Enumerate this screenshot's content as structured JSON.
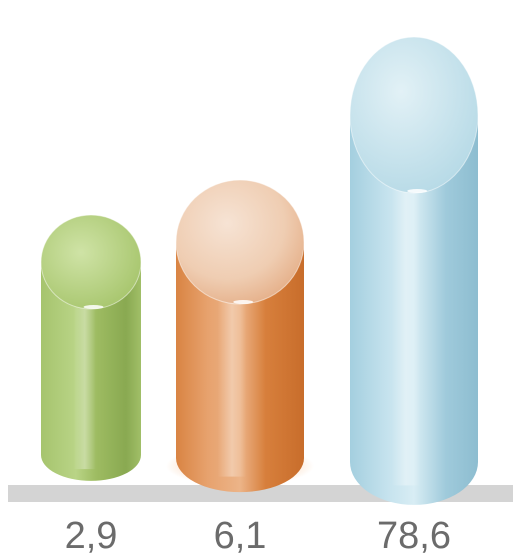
{
  "chart_data": {
    "type": "bar",
    "style": "3d-cylinder",
    "categories": [
      "",
      "",
      ""
    ],
    "values": [
      2.9,
      6.1,
      78.6
    ],
    "value_labels": [
      "2,9",
      "6,1",
      "78,6"
    ],
    "colors": [
      "#9bbf5e",
      "#e08a4a",
      "#a9d3e2"
    ],
    "baseline_color": "#d4d4d4",
    "label_color": "#6b6b6b",
    "title": "",
    "xlabel": "",
    "ylabel": "",
    "grid": false,
    "legend": "none"
  }
}
